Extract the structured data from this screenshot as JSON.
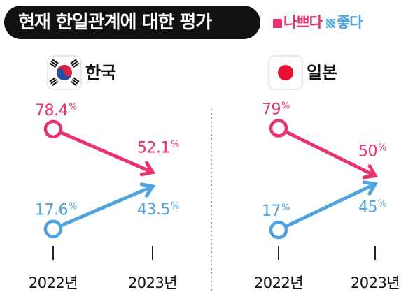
{
  "title": "현재 한일관계에 대한 평가",
  "legend": {
    "bad_label": "나쁘다",
    "good_label": "좋다"
  },
  "colors": {
    "bad": "#e8336d",
    "good": "#4fa3de",
    "title_bg": "#111111"
  },
  "chart_data": [
    {
      "type": "line",
      "country": "한국",
      "flag_icon": "south-korea-flag-icon",
      "categories": [
        "2022년",
        "2023년"
      ],
      "series": [
        {
          "name": "나쁘다",
          "values": [
            78.4,
            52.1
          ]
        },
        {
          "name": "좋다",
          "values": [
            17.6,
            43.5
          ]
        }
      ],
      "unit": "%",
      "grid": false
    },
    {
      "type": "line",
      "country": "일본",
      "flag_icon": "japan-flag-icon",
      "categories": [
        "2022년",
        "2023년"
      ],
      "series": [
        {
          "name": "나쁘다",
          "values": [
            79,
            50
          ]
        },
        {
          "name": "좋다",
          "values": [
            17,
            45
          ]
        }
      ],
      "unit": "%",
      "grid": false
    }
  ]
}
